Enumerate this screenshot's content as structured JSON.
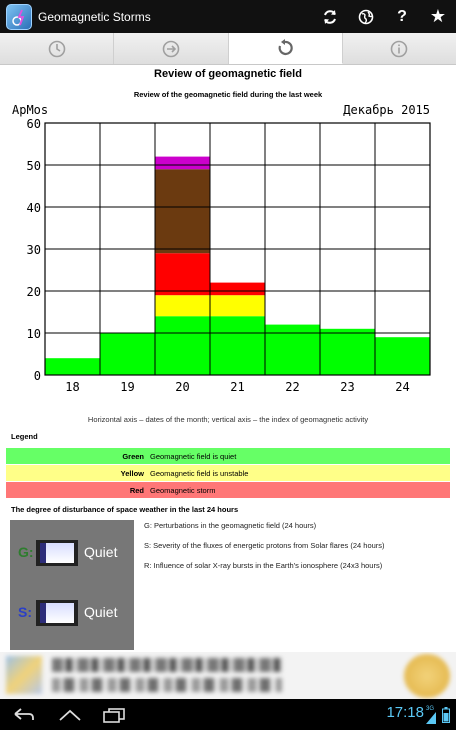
{
  "app": {
    "title": "Geomagnetic Storms"
  },
  "tabs": [
    {
      "name": "clock-icon"
    },
    {
      "name": "arrow-right-icon"
    },
    {
      "name": "refresh-icon"
    },
    {
      "name": "info-icon"
    }
  ],
  "content": {
    "title": "Review of geomagnetic field",
    "subtitle": "Review of the geomagnetic field during the last week",
    "caption": "Horizontal axis – dates of the month; vertical axis – the index of geomagnetic activity"
  },
  "chart_data": {
    "type": "bar",
    "ylabel": "ApMos",
    "period_label": "Декабрь 2015",
    "categories": [
      "18",
      "19",
      "20",
      "21",
      "22",
      "23",
      "24"
    ],
    "ylim": [
      0,
      60
    ],
    "yticks": [
      "0",
      "10",
      "20",
      "30",
      "40",
      "50",
      "60"
    ],
    "grid": true,
    "stack_segments": [
      {
        "level": "green",
        "color": "#00ff00",
        "values": [
          4,
          10,
          14,
          14,
          12,
          11,
          9
        ]
      },
      {
        "level": "yellow",
        "color": "#ffff00",
        "values": [
          0,
          0,
          5,
          5,
          0,
          0,
          0
        ]
      },
      {
        "level": "red",
        "color": "#ff0000",
        "values": [
          0,
          0,
          10,
          3,
          0,
          0,
          0
        ]
      },
      {
        "level": "brown",
        "color": "#6b3a10",
        "values": [
          0,
          0,
          20,
          0,
          0,
          0,
          0
        ]
      },
      {
        "level": "purple",
        "color": "#cc00cc",
        "values": [
          0,
          0,
          3,
          0,
          0,
          0,
          0
        ]
      }
    ]
  },
  "legend": {
    "title": "Legend",
    "items": [
      {
        "key": "Green",
        "desc": "Geomagnetic field is quiet",
        "color": "#66ff66"
      },
      {
        "key": "Yellow",
        "desc": "Geomagnetic field is unstable",
        "color": "#ffff88"
      },
      {
        "key": "Red",
        "desc": "Geomagnetic storm",
        "color": "#ff7777"
      }
    ]
  },
  "disturbance": {
    "title": "The degree of disturbance of space weather in the last 24 hours",
    "g_label": "G:",
    "g_status": "Quiet",
    "s_label": "S:",
    "s_status": "Quiet",
    "notes": [
      "G: Perturbations in the geomagnetic field (24 hours)",
      "S: Severity of the fluxes of energetic protons from Solar flares (24 hours)",
      "R: Influence of solar X-ray bursts in the Earth's ionosphere (24x3 hours)"
    ]
  },
  "statusbar": {
    "time": "17:18",
    "signal": "3G"
  }
}
